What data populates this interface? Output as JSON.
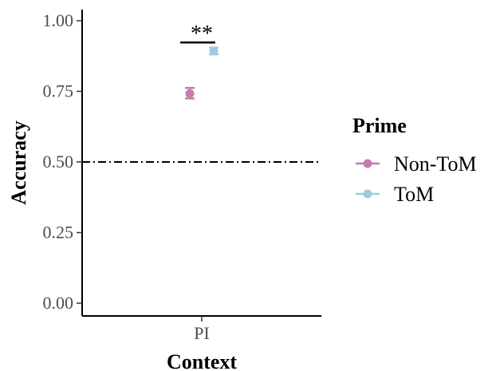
{
  "chart_data": {
    "type": "scatter",
    "xlabel": "Context",
    "ylabel": "Accuracy",
    "categories": [
      "PI"
    ],
    "ylim": [
      0,
      1.05
    ],
    "yticks": [
      0.0,
      0.25,
      0.5,
      0.75,
      1.0
    ],
    "ytick_labels": [
      "0.00",
      "0.25",
      "0.50",
      "0.75",
      "1.00"
    ],
    "grid": false,
    "legend": {
      "title": "Prime",
      "position": "right",
      "entries": [
        "Non-ToM",
        "ToM"
      ]
    },
    "series": [
      {
        "name": "Non-ToM",
        "color": "#c77cab",
        "values": [
          0.742
        ],
        "error_low": [
          0.725
        ],
        "error_high": [
          0.762
        ]
      },
      {
        "name": "ToM",
        "color": "#9ecae1",
        "values": [
          0.893
        ],
        "error_low": [
          0.881
        ],
        "error_high": [
          0.905
        ]
      }
    ],
    "reference_line": {
      "y": 0.5,
      "style": "dash-dot"
    },
    "annotation": {
      "text": "**",
      "between": [
        "Non-ToM",
        "ToM"
      ],
      "y": 0.94
    }
  }
}
